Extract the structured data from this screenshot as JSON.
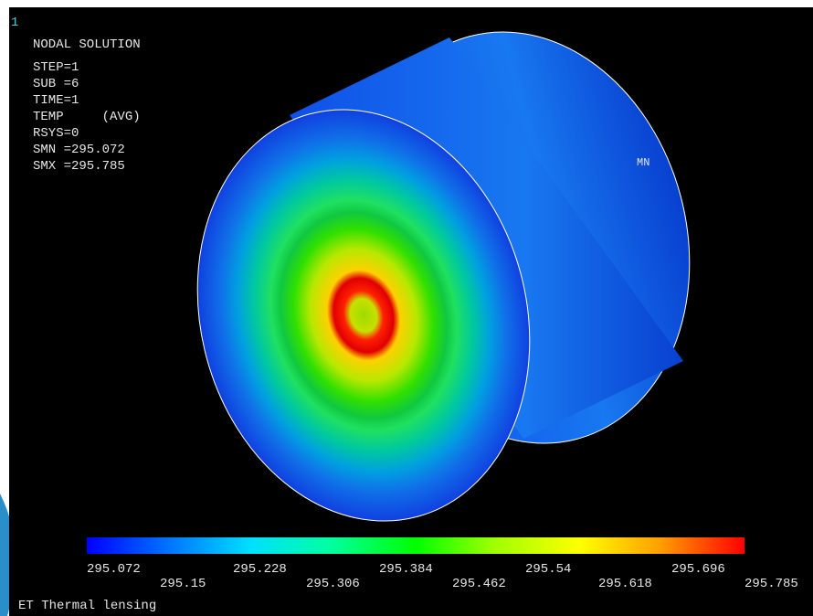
{
  "window_number": "1",
  "header": [
    "NODAL SOLUTION",
    "STEP=1",
    "SUB =6",
    "TIME=1",
    "TEMP     (AVG)",
    "RSYS=0",
    "SMN =295.072",
    "SMX =295.785"
  ],
  "min_marker": "MN",
  "legend": {
    "labels": [
      "295.072",
      "295.15",
      "295.228",
      "295.306",
      "295.384",
      "295.462",
      "295.54",
      "295.618",
      "295.696",
      "295.785"
    ]
  },
  "footer": "ET Thermal lensing"
}
